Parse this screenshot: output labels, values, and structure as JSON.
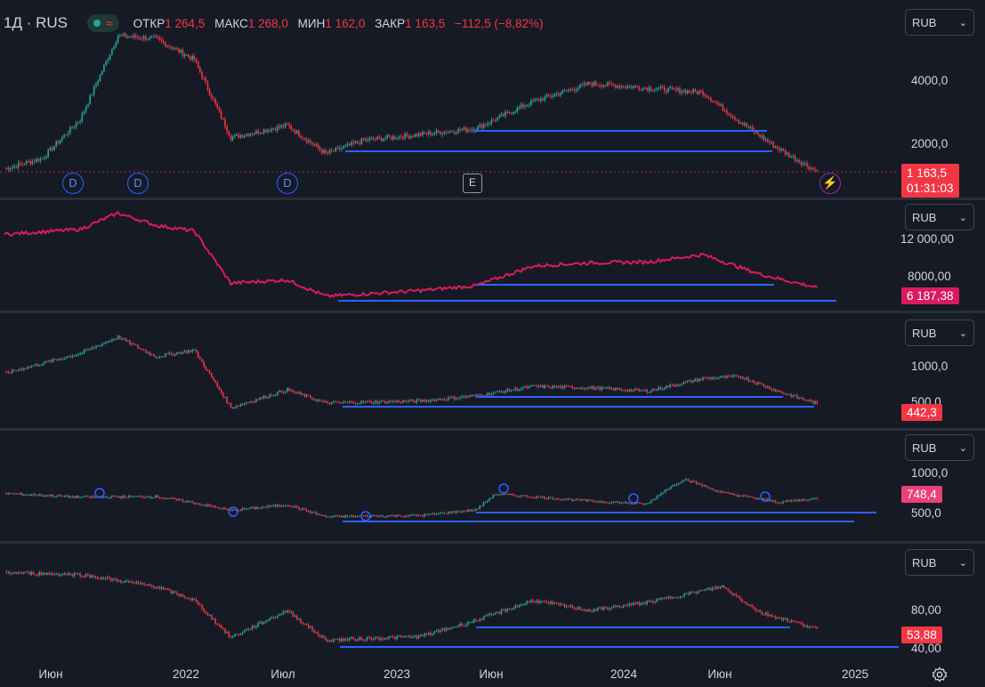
{
  "header": {
    "symbol": "1Д · RUS",
    "wave_icon": "≈",
    "open_label": "ОТКР",
    "open_value": "1 264,5",
    "high_label": "МАКС",
    "high_value": "1 268,0",
    "low_label": "МИН",
    "low_value": "1 162,0",
    "close_label": "ЗАКР",
    "close_value": "1 163,5",
    "change": "−112,5 (−8,82%)"
  },
  "colors": {
    "bg": "#161a25",
    "up": "#26a69a",
    "down": "#f23645",
    "line": "#2962ff",
    "pink": "#d81b60"
  },
  "panes": [
    {
      "currency": "RUB",
      "ticks": [
        "4000,0",
        "2000,0"
      ],
      "price": "1 163,5",
      "countdown": "01:31:03",
      "markers": {
        "dividend": "D",
        "earnings": "E",
        "bolt": "⚡"
      }
    },
    {
      "currency": "RUB",
      "ticks": [
        "12 000,00",
        "8000,00"
      ],
      "price": "6 187,38"
    },
    {
      "currency": "RUB",
      "ticks": [
        "1000,0",
        "500,0"
      ],
      "price": "442,3"
    },
    {
      "currency": "RUB",
      "ticks": [
        "1000,0",
        "500,0"
      ],
      "price": "748,4"
    },
    {
      "currency": "RUB",
      "ticks": [
        "80,00",
        "40,00"
      ],
      "price": "53,88"
    }
  ],
  "xaxis": [
    "Июн",
    "2022",
    "Июл",
    "2023",
    "Июн",
    "2024",
    "Июн",
    "2025"
  ],
  "chart_data": [
    {
      "type": "line",
      "description_name": "RUS",
      "currency": "RUB",
      "x": [
        "2021-04",
        "2021-06",
        "2021-08",
        "2021-10",
        "2021-12",
        "2022-02",
        "2022-04",
        "2022-07",
        "2022-09",
        "2022-11",
        "2023-02",
        "2023-05",
        "2023-08",
        "2023-11",
        "2024-02",
        "2024-05",
        "2024-07",
        "2024-09",
        "2024-11"
      ],
      "values": [
        1250,
        1600,
        2900,
        5700,
        5600,
        4900,
        2300,
        2700,
        1750,
        2200,
        2400,
        2600,
        3500,
        4100,
        3950,
        3800,
        2800,
        1900,
        1163.5
      ],
      "ylim": [
        1000,
        6000
      ]
    },
    {
      "type": "line",
      "currency": "RUB",
      "x": [
        "2021-04",
        "2021-08",
        "2021-10",
        "2021-12",
        "2022-02",
        "2022-04",
        "2022-07",
        "2022-09",
        "2023-02",
        "2023-05",
        "2023-08",
        "2023-11",
        "2024-02",
        "2024-05",
        "2024-08",
        "2024-10",
        "2024-11"
      ],
      "values": [
        12700,
        13300,
        15300,
        13800,
        13100,
        6700,
        7100,
        5100,
        5800,
        6400,
        8800,
        9200,
        9300,
        10200,
        7800,
        6700,
        6187.38
      ],
      "ylim": [
        4000,
        16000
      ]
    },
    {
      "type": "line",
      "currency": "RUB",
      "x": [
        "2021-04",
        "2021-08",
        "2021-10",
        "2021-12",
        "2022-02",
        "2022-04",
        "2022-07",
        "2022-09",
        "2023-02",
        "2023-05",
        "2023-08",
        "2023-11",
        "2024-02",
        "2024-05",
        "2024-07",
        "2024-09",
        "2024-11"
      ],
      "values": [
        900,
        1200,
        1450,
        1150,
        1250,
        380,
        650,
        450,
        480,
        560,
        700,
        680,
        630,
        820,
        850,
        620,
        442.3
      ],
      "ylim": [
        300,
        1700
      ]
    },
    {
      "type": "line",
      "currency": "RUB",
      "x": [
        "2021-04",
        "2021-08",
        "2021-12",
        "2022-02",
        "2022-04",
        "2022-07",
        "2022-09",
        "2023-02",
        "2023-05",
        "2023-06",
        "2023-11",
        "2024-02",
        "2024-03",
        "2024-04",
        "2024-06",
        "2024-09",
        "2024-11"
      ],
      "values": [
        830,
        770,
        780,
        680,
        560,
        650,
        460,
        480,
        570,
        820,
        710,
        660,
        880,
        1060,
        840,
        690,
        748.4
      ],
      "ylim": [
        300,
        1400
      ]
    },
    {
      "type": "line",
      "currency": "RUB",
      "x": [
        "2021-04",
        "2021-08",
        "2021-12",
        "2022-02",
        "2022-04",
        "2022-07",
        "2022-09",
        "2023-02",
        "2023-05",
        "2023-08",
        "2023-11",
        "2024-02",
        "2024-04",
        "2024-06",
        "2024-08",
        "2024-11"
      ],
      "values": [
        110,
        108,
        96,
        82,
        45,
        72,
        42,
        46,
        62,
        82,
        72,
        80,
        88,
        96,
        70,
        53.88
      ],
      "ylim": [
        30,
        130
      ]
    }
  ]
}
